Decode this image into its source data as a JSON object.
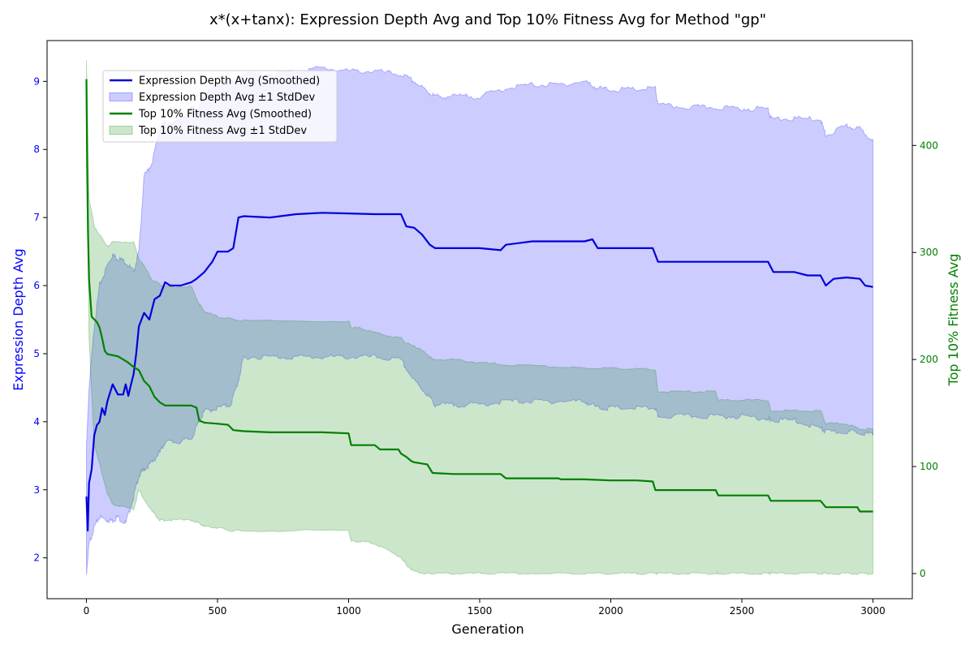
{
  "chart_data": {
    "type": "line",
    "title": "x*(x+tanx): Expression Depth Avg and Top 10% Fitness Avg for Method \"gp\"",
    "xlabel": "Generation",
    "ylabel_left": "Expression Depth Avg",
    "ylabel_right": "Top 10% Fitness Avg",
    "xlim": [
      -150,
      3150
    ],
    "ylim_left": [
      1.4,
      9.6
    ],
    "ylim_right": [
      -23.5,
      498
    ],
    "x_ticks": [
      0,
      500,
      1000,
      1500,
      2000,
      2500,
      3000
    ],
    "y_left_ticks": [
      2,
      3,
      4,
      5,
      6,
      7,
      8,
      9
    ],
    "y_right_ticks": [
      0,
      100,
      200,
      300,
      400
    ],
    "grid": false,
    "legend_position": "upper-left",
    "colors": {
      "depth_line": "#0000dd",
      "depth_band": "#0000ff",
      "fitness_line": "#008000",
      "fitness_band": "#008000",
      "left_axis_text": "#0000ff",
      "right_axis_text": "#008000"
    },
    "legend": [
      {
        "label": "Expression Depth Avg (Smoothed)",
        "kind": "line",
        "color": "#0000dd"
      },
      {
        "label": "Expression Depth Avg ±1 StdDev",
        "kind": "band",
        "color": "#0000ff"
      },
      {
        "label": "Top 10% Fitness Avg (Smoothed)",
        "kind": "line",
        "color": "#008000"
      },
      {
        "label": "Top 10% Fitness Avg ±1 StdDev",
        "kind": "band",
        "color": "#008000"
      }
    ],
    "series": [
      {
        "name": "Expression Depth Avg (Smoothed)",
        "axis": "left",
        "points": [
          [
            0,
            2.9
          ],
          [
            5,
            2.4
          ],
          [
            10,
            3.1
          ],
          [
            20,
            3.3
          ],
          [
            30,
            3.8
          ],
          [
            40,
            3.95
          ],
          [
            50,
            4.0
          ],
          [
            60,
            4.2
          ],
          [
            70,
            4.1
          ],
          [
            80,
            4.3
          ],
          [
            100,
            4.55
          ],
          [
            120,
            4.4
          ],
          [
            140,
            4.4
          ],
          [
            150,
            4.55
          ],
          [
            160,
            4.38
          ],
          [
            170,
            4.55
          ],
          [
            180,
            4.7
          ],
          [
            190,
            5.0
          ],
          [
            200,
            5.4
          ],
          [
            220,
            5.6
          ],
          [
            240,
            5.5
          ],
          [
            260,
            5.8
          ],
          [
            280,
            5.85
          ],
          [
            300,
            6.05
          ],
          [
            320,
            6.0
          ],
          [
            360,
            6.0
          ],
          [
            400,
            6.05
          ],
          [
            420,
            6.1
          ],
          [
            450,
            6.2
          ],
          [
            480,
            6.35
          ],
          [
            500,
            6.5
          ],
          [
            540,
            6.5
          ],
          [
            560,
            6.55
          ],
          [
            580,
            7.0
          ],
          [
            600,
            7.02
          ],
          [
            700,
            7.0
          ],
          [
            800,
            7.05
          ],
          [
            900,
            7.07
          ],
          [
            1000,
            7.06
          ],
          [
            1100,
            7.05
          ],
          [
            1200,
            7.05
          ],
          [
            1220,
            6.87
          ],
          [
            1250,
            6.85
          ],
          [
            1280,
            6.75
          ],
          [
            1310,
            6.6
          ],
          [
            1330,
            6.55
          ],
          [
            1400,
            6.55
          ],
          [
            1500,
            6.55
          ],
          [
            1580,
            6.52
          ],
          [
            1600,
            6.6
          ],
          [
            1700,
            6.65
          ],
          [
            1800,
            6.65
          ],
          [
            1900,
            6.65
          ],
          [
            1930,
            6.68
          ],
          [
            1950,
            6.55
          ],
          [
            2000,
            6.55
          ],
          [
            2100,
            6.55
          ],
          [
            2160,
            6.55
          ],
          [
            2180,
            6.35
          ],
          [
            2300,
            6.35
          ],
          [
            2400,
            6.35
          ],
          [
            2500,
            6.35
          ],
          [
            2600,
            6.35
          ],
          [
            2620,
            6.2
          ],
          [
            2700,
            6.2
          ],
          [
            2750,
            6.15
          ],
          [
            2800,
            6.15
          ],
          [
            2820,
            6.0
          ],
          [
            2850,
            6.1
          ],
          [
            2900,
            6.12
          ],
          [
            2950,
            6.1
          ],
          [
            2970,
            6.0
          ],
          [
            3000,
            5.98
          ]
        ]
      },
      {
        "name": "Expression Depth Avg ±1 StdDev",
        "axis": "left",
        "band": true,
        "x": [
          0,
          10,
          30,
          50,
          80,
          100,
          120,
          150,
          180,
          200,
          220,
          250,
          280,
          300,
          350,
          400,
          430,
          450,
          500,
          550,
          580,
          600,
          700,
          800,
          900,
          1000,
          1100,
          1200,
          1250,
          1300,
          1330,
          1400,
          1500,
          1600,
          1700,
          1800,
          1900,
          1950,
          2000,
          2100,
          2170,
          2180,
          2300,
          2400,
          2500,
          2600,
          2610,
          2700,
          2800,
          2820,
          2900,
          2950,
          3000
        ],
        "upper": [
          3.6,
          4.5,
          5.4,
          6.0,
          6.3,
          6.45,
          6.4,
          6.35,
          6.2,
          6.5,
          7.6,
          7.8,
          8.3,
          8.4,
          8.4,
          8.6,
          8.6,
          8.8,
          8.95,
          9.0,
          9.05,
          9.1,
          9.1,
          9.15,
          9.2,
          9.15,
          9.15,
          9.1,
          9.0,
          8.85,
          8.78,
          8.78,
          8.78,
          8.9,
          8.95,
          8.95,
          9.0,
          8.9,
          8.88,
          8.88,
          8.9,
          8.65,
          8.62,
          8.62,
          8.6,
          8.6,
          8.45,
          8.45,
          8.45,
          8.2,
          8.35,
          8.3,
          8.15
        ],
        "lower": [
          1.75,
          2.2,
          2.45,
          2.6,
          2.55,
          2.55,
          2.6,
          2.5,
          2.9,
          3.2,
          3.3,
          3.4,
          3.55,
          3.7,
          3.7,
          3.75,
          4.0,
          4.15,
          4.2,
          4.25,
          4.6,
          4.95,
          4.95,
          4.95,
          4.95,
          4.95,
          4.95,
          4.9,
          4.6,
          4.4,
          4.25,
          4.25,
          4.25,
          4.3,
          4.3,
          4.3,
          4.3,
          4.2,
          4.2,
          4.2,
          4.2,
          4.08,
          4.08,
          4.08,
          4.08,
          4.05,
          4.02,
          4.02,
          3.9,
          3.85,
          3.85,
          3.85,
          3.8
        ]
      },
      {
        "name": "Top 10% Fitness Avg (Smoothed)",
        "axis": "right",
        "points": [
          [
            0,
            462
          ],
          [
            3,
            380
          ],
          [
            6,
            320
          ],
          [
            10,
            275
          ],
          [
            20,
            240
          ],
          [
            40,
            235
          ],
          [
            50,
            230
          ],
          [
            60,
            220
          ],
          [
            70,
            208
          ],
          [
            80,
            205
          ],
          [
            120,
            203
          ],
          [
            140,
            200
          ],
          [
            160,
            197
          ],
          [
            180,
            193
          ],
          [
            200,
            190
          ],
          [
            220,
            180
          ],
          [
            240,
            175
          ],
          [
            260,
            165
          ],
          [
            280,
            160
          ],
          [
            300,
            157
          ],
          [
            350,
            157
          ],
          [
            400,
            157
          ],
          [
            420,
            155
          ],
          [
            430,
            143
          ],
          [
            450,
            141
          ],
          [
            500,
            140
          ],
          [
            540,
            139
          ],
          [
            560,
            134
          ],
          [
            600,
            133
          ],
          [
            700,
            132
          ],
          [
            800,
            132
          ],
          [
            900,
            132
          ],
          [
            1000,
            131
          ],
          [
            1010,
            120
          ],
          [
            1050,
            120
          ],
          [
            1100,
            120
          ],
          [
            1120,
            116
          ],
          [
            1190,
            116
          ],
          [
            1200,
            112
          ],
          [
            1220,
            109
          ],
          [
            1240,
            105
          ],
          [
            1250,
            104
          ],
          [
            1300,
            102
          ],
          [
            1320,
            94
          ],
          [
            1400,
            93
          ],
          [
            1500,
            93
          ],
          [
            1580,
            93
          ],
          [
            1600,
            89
          ],
          [
            1700,
            89
          ],
          [
            1800,
            89
          ],
          [
            1810,
            88
          ],
          [
            1900,
            88
          ],
          [
            2000,
            87
          ],
          [
            2100,
            87
          ],
          [
            2160,
            86
          ],
          [
            2170,
            78
          ],
          [
            2300,
            78
          ],
          [
            2400,
            78
          ],
          [
            2410,
            73
          ],
          [
            2500,
            73
          ],
          [
            2600,
            73
          ],
          [
            2610,
            68
          ],
          [
            2700,
            68
          ],
          [
            2800,
            68
          ],
          [
            2820,
            62
          ],
          [
            2900,
            62
          ],
          [
            2940,
            62
          ],
          [
            2950,
            58
          ],
          [
            3000,
            58
          ]
        ]
      },
      {
        "name": "Top 10% Fitness Avg ±1 StdDev",
        "axis": "right",
        "band": true,
        "x": [
          0,
          10,
          30,
          80,
          100,
          180,
          200,
          250,
          280,
          300,
          400,
          430,
          450,
          500,
          550,
          600,
          1000,
          1010,
          1050,
          1100,
          1200,
          1220,
          1250,
          1300,
          1320,
          1400,
          1500,
          1600,
          1800,
          1900,
          2000,
          2100,
          2170,
          2180,
          2300,
          2400,
          2410,
          2500,
          2600,
          2610,
          2700,
          2800,
          2820,
          2900,
          2950,
          3000
        ],
        "upper": [
          480,
          350,
          325,
          305,
          310,
          310,
          295,
          275,
          270,
          268,
          268,
          252,
          245,
          240,
          238,
          236,
          236,
          230,
          229,
          225,
          220,
          215,
          213,
          205,
          200,
          200,
          197,
          195,
          193,
          192,
          192,
          191,
          191,
          170,
          170,
          170,
          162,
          162,
          162,
          152,
          152,
          152,
          140,
          140,
          135,
          135
        ],
        "lower": [
          470,
          220,
          120,
          75,
          65,
          60,
          78,
          58,
          50,
          50,
          50,
          47,
          44,
          43,
          40,
          40,
          40,
          30,
          30,
          28,
          15,
          8,
          2,
          0,
          0,
          0,
          0,
          0,
          0,
          0,
          0,
          0,
          0,
          0,
          0,
          0,
          0,
          0,
          0,
          0,
          0,
          0,
          0,
          0,
          0,
          0
        ]
      }
    ]
  }
}
